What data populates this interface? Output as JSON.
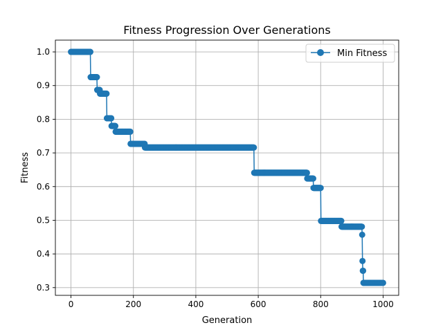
{
  "chart_data": {
    "type": "line",
    "title": "Fitness Progression Over Generations",
    "xlabel": "Generation",
    "ylabel": "Fitness",
    "xlim": [
      -50,
      1050
    ],
    "ylim": [
      0.277,
      1.035
    ],
    "xticks": [
      0,
      200,
      400,
      600,
      800,
      1000
    ],
    "yticks": [
      0.3,
      0.4,
      0.5,
      0.6,
      0.7,
      0.8,
      0.9,
      1.0
    ],
    "grid": true,
    "legend_position": "top-right",
    "series": [
      {
        "name": "Min Fitness",
        "color": "#1f77b4",
        "marker": "circle",
        "steps": [
          {
            "x_start": 0,
            "x_end": 62,
            "y": 1.0
          },
          {
            "x_start": 63,
            "x_end": 83,
            "y": 0.925
          },
          {
            "x_start": 84,
            "x_end": 92,
            "y": 0.887
          },
          {
            "x_start": 93,
            "x_end": 114,
            "y": 0.876
          },
          {
            "x_start": 115,
            "x_end": 129,
            "y": 0.803
          },
          {
            "x_start": 130,
            "x_end": 142,
            "y": 0.78
          },
          {
            "x_start": 143,
            "x_end": 190,
            "y": 0.763
          },
          {
            "x_start": 191,
            "x_end": 236,
            "y": 0.727
          },
          {
            "x_start": 237,
            "x_end": 586,
            "y": 0.716
          },
          {
            "x_start": 587,
            "x_end": 756,
            "y": 0.641
          },
          {
            "x_start": 757,
            "x_end": 776,
            "y": 0.624
          },
          {
            "x_start": 777,
            "x_end": 800,
            "y": 0.596
          },
          {
            "x_start": 801,
            "x_end": 866,
            "y": 0.498
          },
          {
            "x_start": 867,
            "x_end": 932,
            "y": 0.481
          },
          {
            "x_start": 933,
            "x_end": 933,
            "y": 0.457
          },
          {
            "x_start": 934,
            "x_end": 934,
            "y": 0.379
          },
          {
            "x_start": 935,
            "x_end": 936,
            "y": 0.35
          },
          {
            "x_start": 937,
            "x_end": 1000,
            "y": 0.314
          }
        ]
      }
    ]
  }
}
